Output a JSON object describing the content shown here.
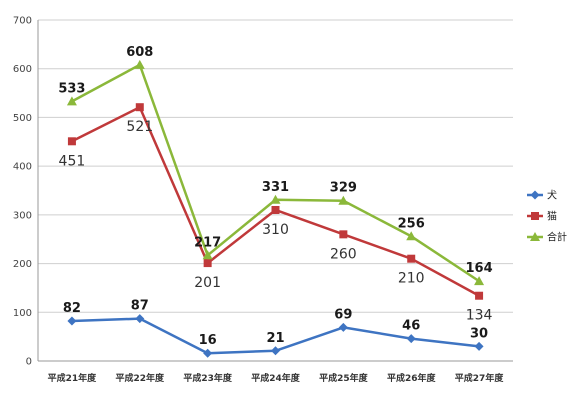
{
  "chart_data": {
    "type": "line",
    "categories": [
      "平成21年度",
      "平成22年度",
      "平成23年度",
      "平成24年度",
      "平成25年度",
      "平成26年度",
      "平成27年度"
    ],
    "ylim": [
      0,
      700
    ],
    "yticks": [
      0,
      100,
      200,
      300,
      400,
      500,
      600,
      700
    ],
    "grid": true,
    "legend_position": "right",
    "series": [
      {
        "name": "犬",
        "color": "#3e74c2",
        "marker": "diamond",
        "label_style": "bold-above",
        "values": [
          82,
          87,
          16,
          21,
          69,
          46,
          30
        ]
      },
      {
        "name": "猫",
        "color": "#c0393a",
        "marker": "square",
        "label_style": "plain-below",
        "values": [
          451,
          521,
          201,
          310,
          260,
          210,
          134
        ]
      },
      {
        "name": "合計",
        "color": "#8bb83a",
        "marker": "triangle",
        "label_style": "bold-above",
        "values": [
          533,
          608,
          217,
          331,
          329,
          256,
          164
        ]
      }
    ]
  }
}
